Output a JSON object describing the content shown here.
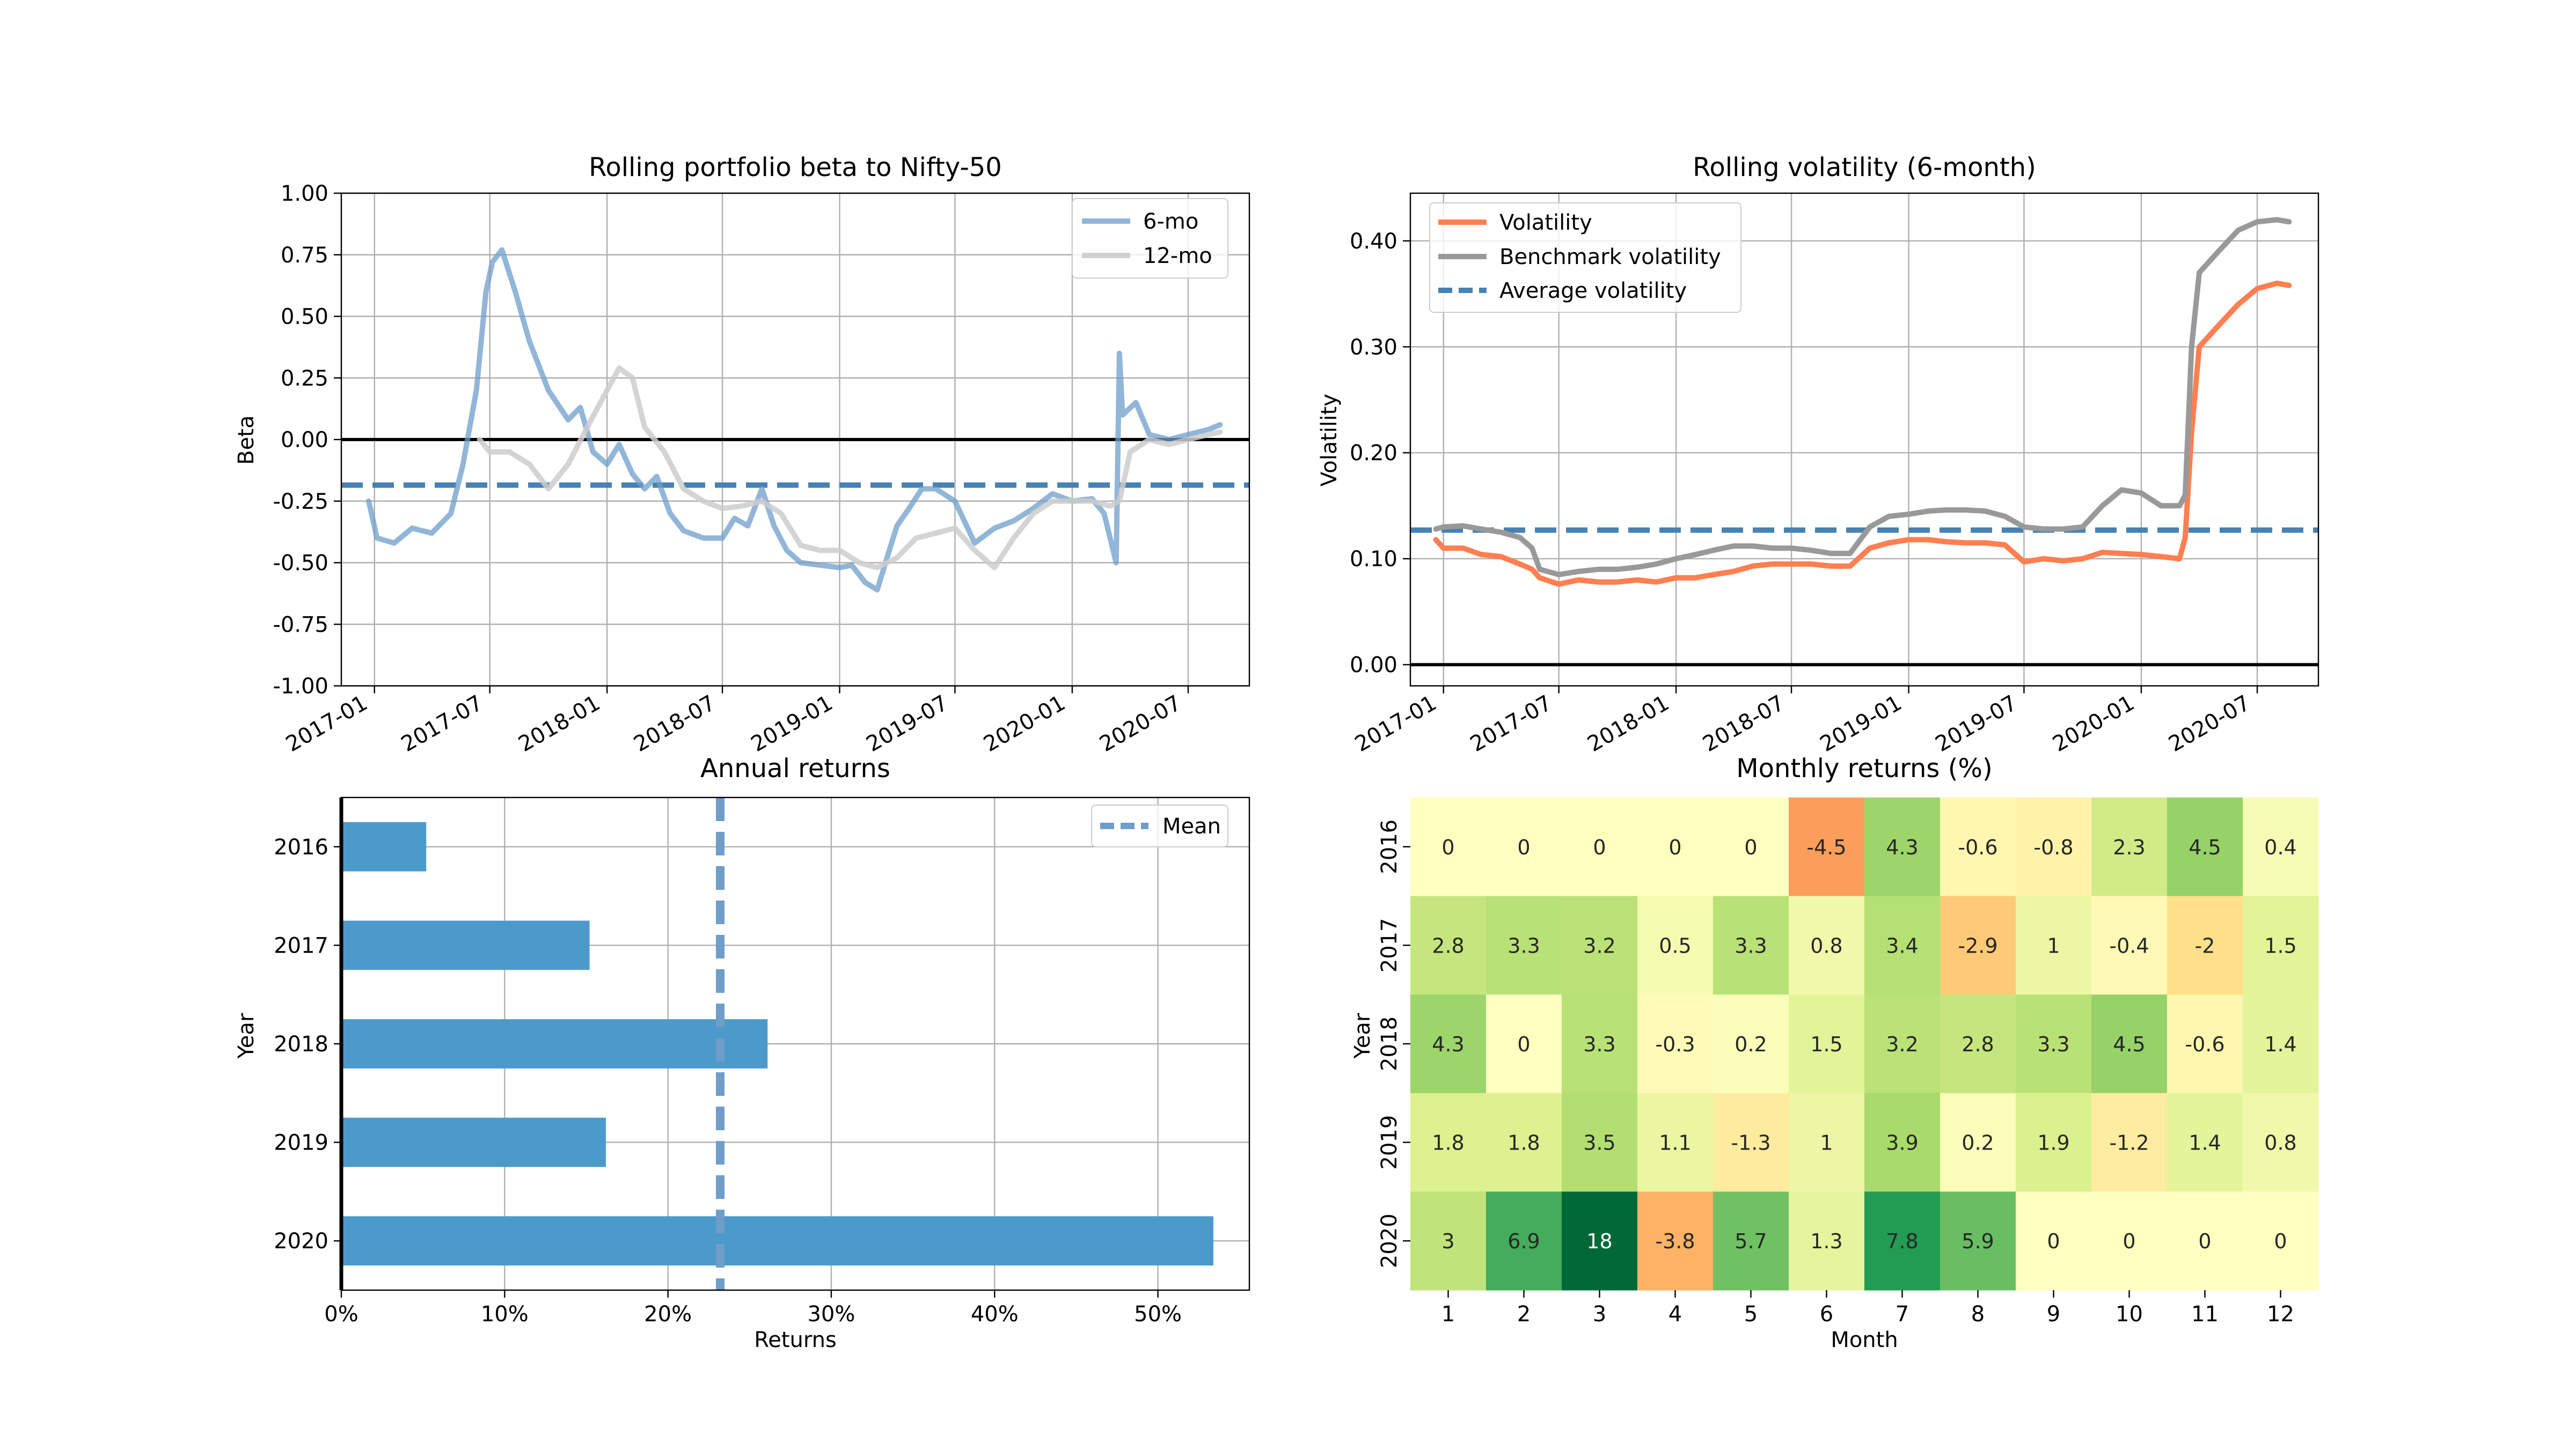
{
  "chart_data": [
    {
      "type": "line",
      "title": "Rolling portfolio beta to Nifty-50",
      "xlabel": "",
      "ylabel": "Beta",
      "ylim": [
        -1.0,
        1.0
      ],
      "yticks": [
        "1.00",
        "0.75",
        "0.50",
        "0.25",
        "0.00",
        "-0.25",
        "-0.50",
        "-0.75",
        "-1.00"
      ],
      "xticks": [
        "2017-01",
        "2017-07",
        "2018-01",
        "2018-07",
        "2019-01",
        "2019-07",
        "2020-01",
        "2020-07"
      ],
      "grid": true,
      "legend": "top-right",
      "series": [
        {
          "name": "6-mo",
          "color": "#6e9ec9",
          "x": [
            "2016-12-23",
            "2017-01-05",
            "2017-02-01",
            "2017-03-01",
            "2017-04-01",
            "2017-05-01",
            "2017-05-20",
            "2017-06-10",
            "2017-06-25",
            "2017-07-05",
            "2017-07-20",
            "2017-08-10",
            "2017-09-01",
            "2017-10-01",
            "2017-11-01",
            "2017-11-20",
            "2017-12-10",
            "2018-01-01",
            "2018-01-20",
            "2018-02-10",
            "2018-03-01",
            "2018-03-20",
            "2018-04-10",
            "2018-05-01",
            "2018-06-01",
            "2018-07-01",
            "2018-07-20",
            "2018-08-10",
            "2018-09-01",
            "2018-09-20",
            "2018-10-10",
            "2018-11-01",
            "2018-12-01",
            "2019-01-01",
            "2019-01-20",
            "2019-02-10",
            "2019-03-01",
            "2019-03-20",
            "2019-04-01",
            "2019-04-20",
            "2019-05-10",
            "2019-06-01",
            "2019-07-01",
            "2019-08-01",
            "2019-09-01",
            "2019-10-01",
            "2019-11-01",
            "2019-12-01",
            "2020-01-01",
            "2020-02-01",
            "2020-02-20",
            "2020-03-10",
            "2020-03-15",
            "2020-03-20",
            "2020-04-10",
            "2020-05-01",
            "2020-06-01",
            "2020-07-01",
            "2020-08-01",
            "2020-08-20"
          ],
          "y": [
            -0.25,
            -0.4,
            -0.42,
            -0.36,
            -0.38,
            -0.3,
            -0.1,
            0.2,
            0.6,
            0.72,
            0.77,
            0.6,
            0.4,
            0.2,
            0.08,
            0.13,
            -0.05,
            -0.1,
            -0.02,
            -0.14,
            -0.2,
            -0.15,
            -0.3,
            -0.37,
            -0.4,
            -0.4,
            -0.32,
            -0.35,
            -0.2,
            -0.35,
            -0.45,
            -0.5,
            -0.51,
            -0.52,
            -0.51,
            -0.58,
            -0.61,
            -0.45,
            -0.35,
            -0.28,
            -0.2,
            -0.2,
            -0.25,
            -0.42,
            -0.36,
            -0.33,
            -0.28,
            -0.22,
            -0.25,
            -0.24,
            -0.3,
            -0.5,
            0.35,
            0.1,
            0.15,
            0.02,
            0.0,
            0.02,
            0.04,
            0.06
          ]
        },
        {
          "name": "12-mo",
          "color": "#cccccc",
          "x": [
            "2017-06-15",
            "2017-07-01",
            "2017-08-01",
            "2017-09-01",
            "2017-10-01",
            "2017-11-01",
            "2017-12-01",
            "2018-01-01",
            "2018-01-20",
            "2018-02-10",
            "2018-03-01",
            "2018-04-01",
            "2018-05-01",
            "2018-06-01",
            "2018-07-01",
            "2018-08-01",
            "2018-09-01",
            "2018-10-01",
            "2018-11-01",
            "2018-12-01",
            "2019-01-01",
            "2019-02-01",
            "2019-03-01",
            "2019-04-01",
            "2019-05-01",
            "2019-06-01",
            "2019-07-01",
            "2019-08-01",
            "2019-09-01",
            "2019-10-01",
            "2019-11-01",
            "2019-12-01",
            "2020-01-01",
            "2020-02-01",
            "2020-03-01",
            "2020-03-15",
            "2020-04-01",
            "2020-05-01",
            "2020-06-01",
            "2020-07-01",
            "2020-08-01",
            "2020-08-20"
          ],
          "y": [
            0.0,
            -0.05,
            -0.05,
            -0.1,
            -0.2,
            -0.1,
            0.05,
            0.2,
            0.29,
            0.25,
            0.05,
            -0.05,
            -0.2,
            -0.25,
            -0.28,
            -0.27,
            -0.25,
            -0.3,
            -0.43,
            -0.45,
            -0.45,
            -0.5,
            -0.52,
            -0.48,
            -0.4,
            -0.38,
            -0.36,
            -0.45,
            -0.52,
            -0.4,
            -0.3,
            -0.25,
            -0.25,
            -0.25,
            -0.27,
            -0.25,
            -0.05,
            0.0,
            -0.02,
            0.0,
            0.02,
            0.03
          ]
        }
      ],
      "reference_lines": [
        {
          "kind": "horizontal",
          "y": 0.0,
          "color": "#000000"
        },
        {
          "kind": "horizontal",
          "y": -0.185,
          "color": "#4682b4",
          "dashed": true
        }
      ]
    },
    {
      "type": "line",
      "title": "Rolling volatility (6-month)",
      "xlabel": "",
      "ylabel": "Volatility",
      "ylim": [
        -0.02,
        0.445
      ],
      "yticks": [
        "0.40",
        "0.30",
        "0.20",
        "0.10",
        "0.00"
      ],
      "xticks": [
        "2017-01",
        "2017-07",
        "2018-01",
        "2018-07",
        "2019-01",
        "2019-07",
        "2020-01",
        "2020-07"
      ],
      "grid": true,
      "legend": "top-left",
      "series": [
        {
          "name": "Volatility",
          "color": "#ff7f50",
          "x": [
            "2016-12-20",
            "2017-01-01",
            "2017-02-01",
            "2017-03-01",
            "2017-04-01",
            "2017-05-01",
            "2017-05-20",
            "2017-06-01",
            "2017-07-01",
            "2017-08-01",
            "2017-09-01",
            "2017-10-01",
            "2017-11-01",
            "2017-12-01",
            "2018-01-01",
            "2018-02-01",
            "2018-03-01",
            "2018-04-01",
            "2018-05-01",
            "2018-06-01",
            "2018-07-01",
            "2018-08-01",
            "2018-09-01",
            "2018-10-01",
            "2018-11-01",
            "2018-12-01",
            "2019-01-01",
            "2019-02-01",
            "2019-03-01",
            "2019-04-01",
            "2019-05-01",
            "2019-06-01",
            "2019-07-01",
            "2019-08-01",
            "2019-09-01",
            "2019-10-01",
            "2019-11-01",
            "2019-12-01",
            "2020-01-01",
            "2020-02-01",
            "2020-03-01",
            "2020-03-10",
            "2020-03-20",
            "2020-04-01",
            "2020-05-01",
            "2020-06-01",
            "2020-07-01",
            "2020-08-01",
            "2020-08-20"
          ],
          "y": [
            0.118,
            0.11,
            0.11,
            0.104,
            0.102,
            0.095,
            0.09,
            0.082,
            0.076,
            0.08,
            0.078,
            0.078,
            0.08,
            0.078,
            0.082,
            0.082,
            0.085,
            0.088,
            0.093,
            0.095,
            0.095,
            0.095,
            0.093,
            0.093,
            0.11,
            0.115,
            0.118,
            0.118,
            0.116,
            0.115,
            0.115,
            0.113,
            0.097,
            0.1,
            0.098,
            0.1,
            0.106,
            0.105,
            0.104,
            0.102,
            0.1,
            0.12,
            0.22,
            0.3,
            0.32,
            0.34,
            0.355,
            0.36,
            0.358
          ]
        },
        {
          "name": "Benchmark volatility",
          "color": "#999999",
          "x": [
            "2016-12-20",
            "2017-01-01",
            "2017-02-01",
            "2017-03-01",
            "2017-04-01",
            "2017-05-01",
            "2017-05-20",
            "2017-06-01",
            "2017-07-01",
            "2017-08-01",
            "2017-09-01",
            "2017-10-01",
            "2017-11-01",
            "2017-12-01",
            "2018-01-01",
            "2018-02-01",
            "2018-03-01",
            "2018-04-01",
            "2018-05-01",
            "2018-06-01",
            "2018-07-01",
            "2018-08-01",
            "2018-09-01",
            "2018-10-01",
            "2018-11-01",
            "2018-12-01",
            "2019-01-01",
            "2019-02-01",
            "2019-03-01",
            "2019-04-01",
            "2019-05-01",
            "2019-06-01",
            "2019-07-01",
            "2019-08-01",
            "2019-09-01",
            "2019-10-01",
            "2019-11-01",
            "2019-12-01",
            "2020-01-01",
            "2020-02-01",
            "2020-03-01",
            "2020-03-10",
            "2020-03-20",
            "2020-04-01",
            "2020-05-01",
            "2020-06-01",
            "2020-07-01",
            "2020-08-01",
            "2020-08-20"
          ],
          "y": [
            0.128,
            0.13,
            0.131,
            0.128,
            0.125,
            0.12,
            0.11,
            0.09,
            0.085,
            0.088,
            0.09,
            0.09,
            0.092,
            0.095,
            0.1,
            0.104,
            0.108,
            0.112,
            0.112,
            0.11,
            0.11,
            0.108,
            0.105,
            0.105,
            0.13,
            0.14,
            0.142,
            0.145,
            0.146,
            0.146,
            0.145,
            0.14,
            0.13,
            0.128,
            0.128,
            0.13,
            0.15,
            0.165,
            0.162,
            0.15,
            0.15,
            0.16,
            0.3,
            0.37,
            0.39,
            0.41,
            0.418,
            0.42,
            0.418
          ]
        }
      ],
      "reference_lines": [
        {
          "kind": "horizontal",
          "y": 0.0,
          "color": "#000000"
        },
        {
          "kind": "horizontal",
          "y": 0.127,
          "color": "#4682b4",
          "dashed": true,
          "name": "Average volatility"
        }
      ]
    },
    {
      "type": "bar",
      "orientation": "horizontal",
      "title": "Annual returns",
      "xlabel": "Returns",
      "ylabel": "Year",
      "xlim": [
        0,
        55.6
      ],
      "xticks": [
        "0%",
        "10%",
        "20%",
        "30%",
        "40%",
        "50%"
      ],
      "grid": true,
      "legend": "top-right",
      "categories": [
        "2016",
        "2017",
        "2018",
        "2019",
        "2020"
      ],
      "values": [
        5.2,
        15.2,
        26.1,
        16.2,
        53.4
      ],
      "color": "#4c9ac9",
      "mean": {
        "name": "Mean",
        "value": 23.2,
        "color": "#6e9ec9"
      }
    },
    {
      "type": "heatmap",
      "title": "Monthly returns (%)",
      "xlabel": "Month",
      "ylabel": "Year",
      "columns": [
        "1",
        "2",
        "3",
        "4",
        "5",
        "6",
        "7",
        "8",
        "9",
        "10",
        "11",
        "12"
      ],
      "rows": [
        "2016",
        "2017",
        "2018",
        "2019",
        "2020"
      ],
      "values": [
        [
          "0",
          "0",
          "0",
          "0",
          "0",
          "-4.5",
          "4.3",
          "-0.6",
          "-0.8",
          "2.3",
          "4.5",
          "0.4"
        ],
        [
          "2.8",
          "3.3",
          "3.2",
          "0.5",
          "3.3",
          "0.8",
          "3.4",
          "-2.9",
          "1",
          "-0.4",
          "-2",
          "1.5"
        ],
        [
          "4.3",
          "0",
          "3.3",
          "-0.3",
          "0.2",
          "1.5",
          "3.2",
          "2.8",
          "3.3",
          "4.5",
          "-0.6",
          "1.4"
        ],
        [
          "1.8",
          "1.8",
          "3.5",
          "1.1",
          "-1.3",
          "1",
          "3.9",
          "0.2",
          "1.9",
          "-1.2",
          "1.4",
          "0.8"
        ],
        [
          "3",
          "6.9",
          "18",
          "-3.8",
          "5.7",
          "1.3",
          "7.8",
          "5.9",
          "0",
          "0",
          "0",
          "0"
        ]
      ],
      "colormap": "RdYlGn",
      "color_range": [
        -10,
        10
      ]
    }
  ]
}
